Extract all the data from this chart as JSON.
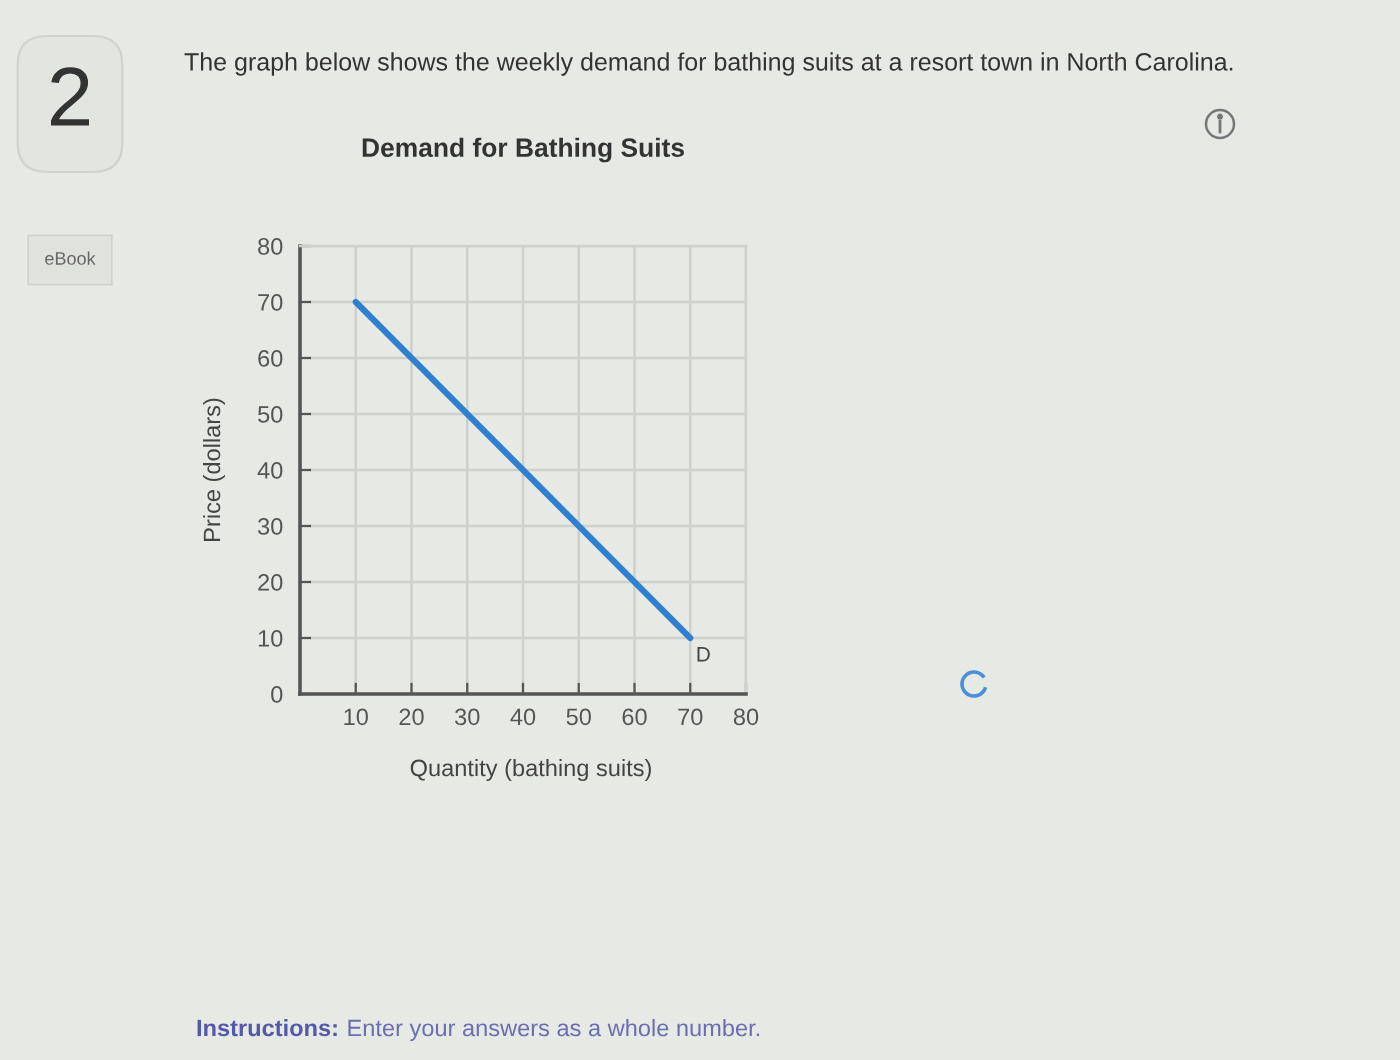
{
  "chart_data": {
    "type": "line",
    "title": "Demand for Bathing Suits",
    "xlabel": "Quantity (bathing suits)",
    "ylabel": "Price (dollars)",
    "series": [
      {
        "name": "D",
        "color": "#2f80d0",
        "x": [
          10,
          70
        ],
        "values": [
          70,
          10
        ]
      }
    ],
    "xlim": [
      0,
      80
    ],
    "ylim": [
      0,
      80
    ],
    "xticks": [
      10,
      20,
      30,
      40,
      50,
      60,
      70,
      80
    ],
    "yticks": [
      0,
      10,
      20,
      30,
      40,
      50,
      60,
      70,
      80
    ],
    "grid": true,
    "line_style": "solid",
    "annotations": [
      "2",
      "eBook",
      "The graph below shows the weekly demand for bathing suits at a resort town in North Carolina.",
      "Instructions:",
      "Enter your answers as a whole number."
    ]
  }
}
